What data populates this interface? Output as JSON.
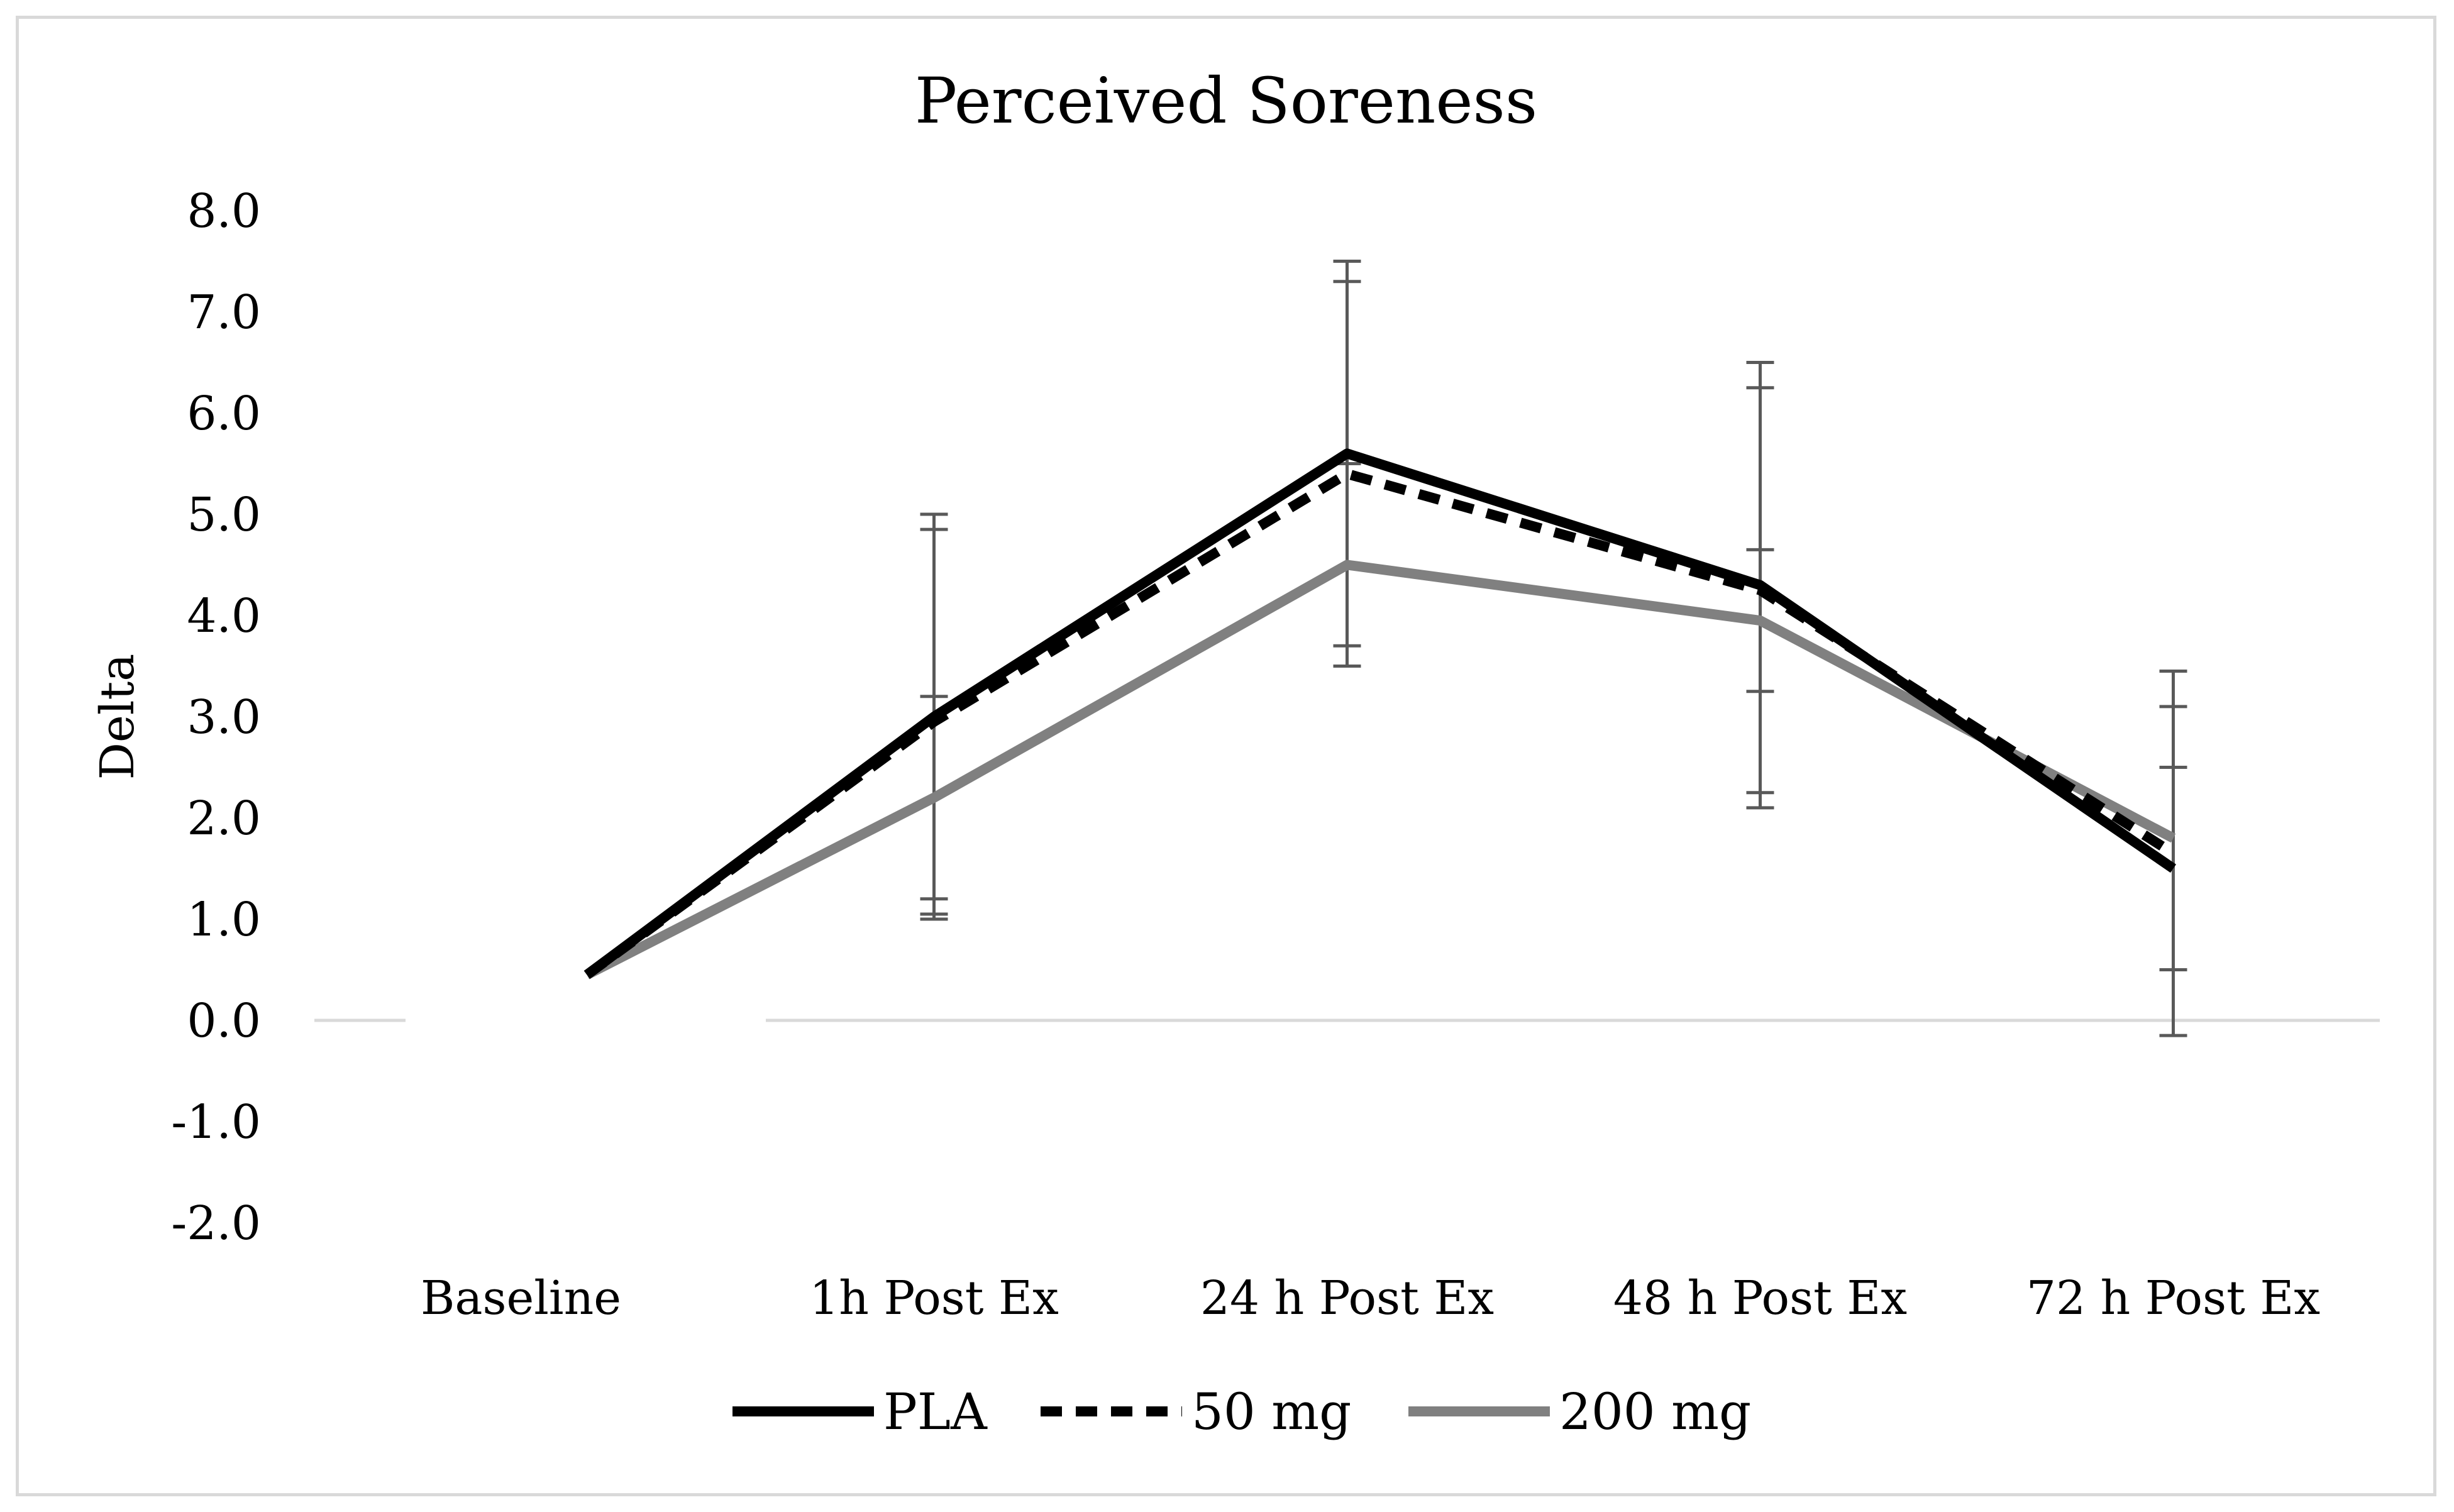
{
  "chart_data": {
    "type": "line",
    "title": "Perceived Soreness",
    "xlabel": "",
    "ylabel": "Delta",
    "ylim": [
      -2.0,
      8.0
    ],
    "yticks": [
      "8.0",
      "7.0",
      "6.0",
      "5.0",
      "4.0",
      "3.0",
      "2.0",
      "1.0",
      "0.0",
      "-1.0",
      "-2.0"
    ],
    "categories": [
      "Baseline",
      "1h Post Ex",
      "24 h Post Ex",
      "48 h Post Ex",
      "72 h Post Ex"
    ],
    "series": [
      {
        "name": "PLA",
        "color": "#000000",
        "style": "solid",
        "values": [
          0.0,
          3.0,
          5.6,
          4.3,
          1.5
        ],
        "error": [
          null,
          2.0,
          1.9,
          2.2,
          1.0
        ]
      },
      {
        "name": "50 mg",
        "color": "#000000",
        "style": "dashed",
        "values": [
          0.0,
          2.95,
          5.4,
          4.25,
          1.65
        ],
        "error": [
          null,
          1.9,
          1.9,
          2.0,
          1.8
        ]
      },
      {
        "name": "200 mg",
        "color": "#808080",
        "style": "solid",
        "values": [
          0.0,
          2.2,
          4.5,
          3.95,
          1.8
        ],
        "error": [
          null,
          1.0,
          1.0,
          0.7,
          1.3
        ]
      }
    ],
    "legend_position": "bottom",
    "grid": false,
    "error_bar_color": "#595959"
  }
}
